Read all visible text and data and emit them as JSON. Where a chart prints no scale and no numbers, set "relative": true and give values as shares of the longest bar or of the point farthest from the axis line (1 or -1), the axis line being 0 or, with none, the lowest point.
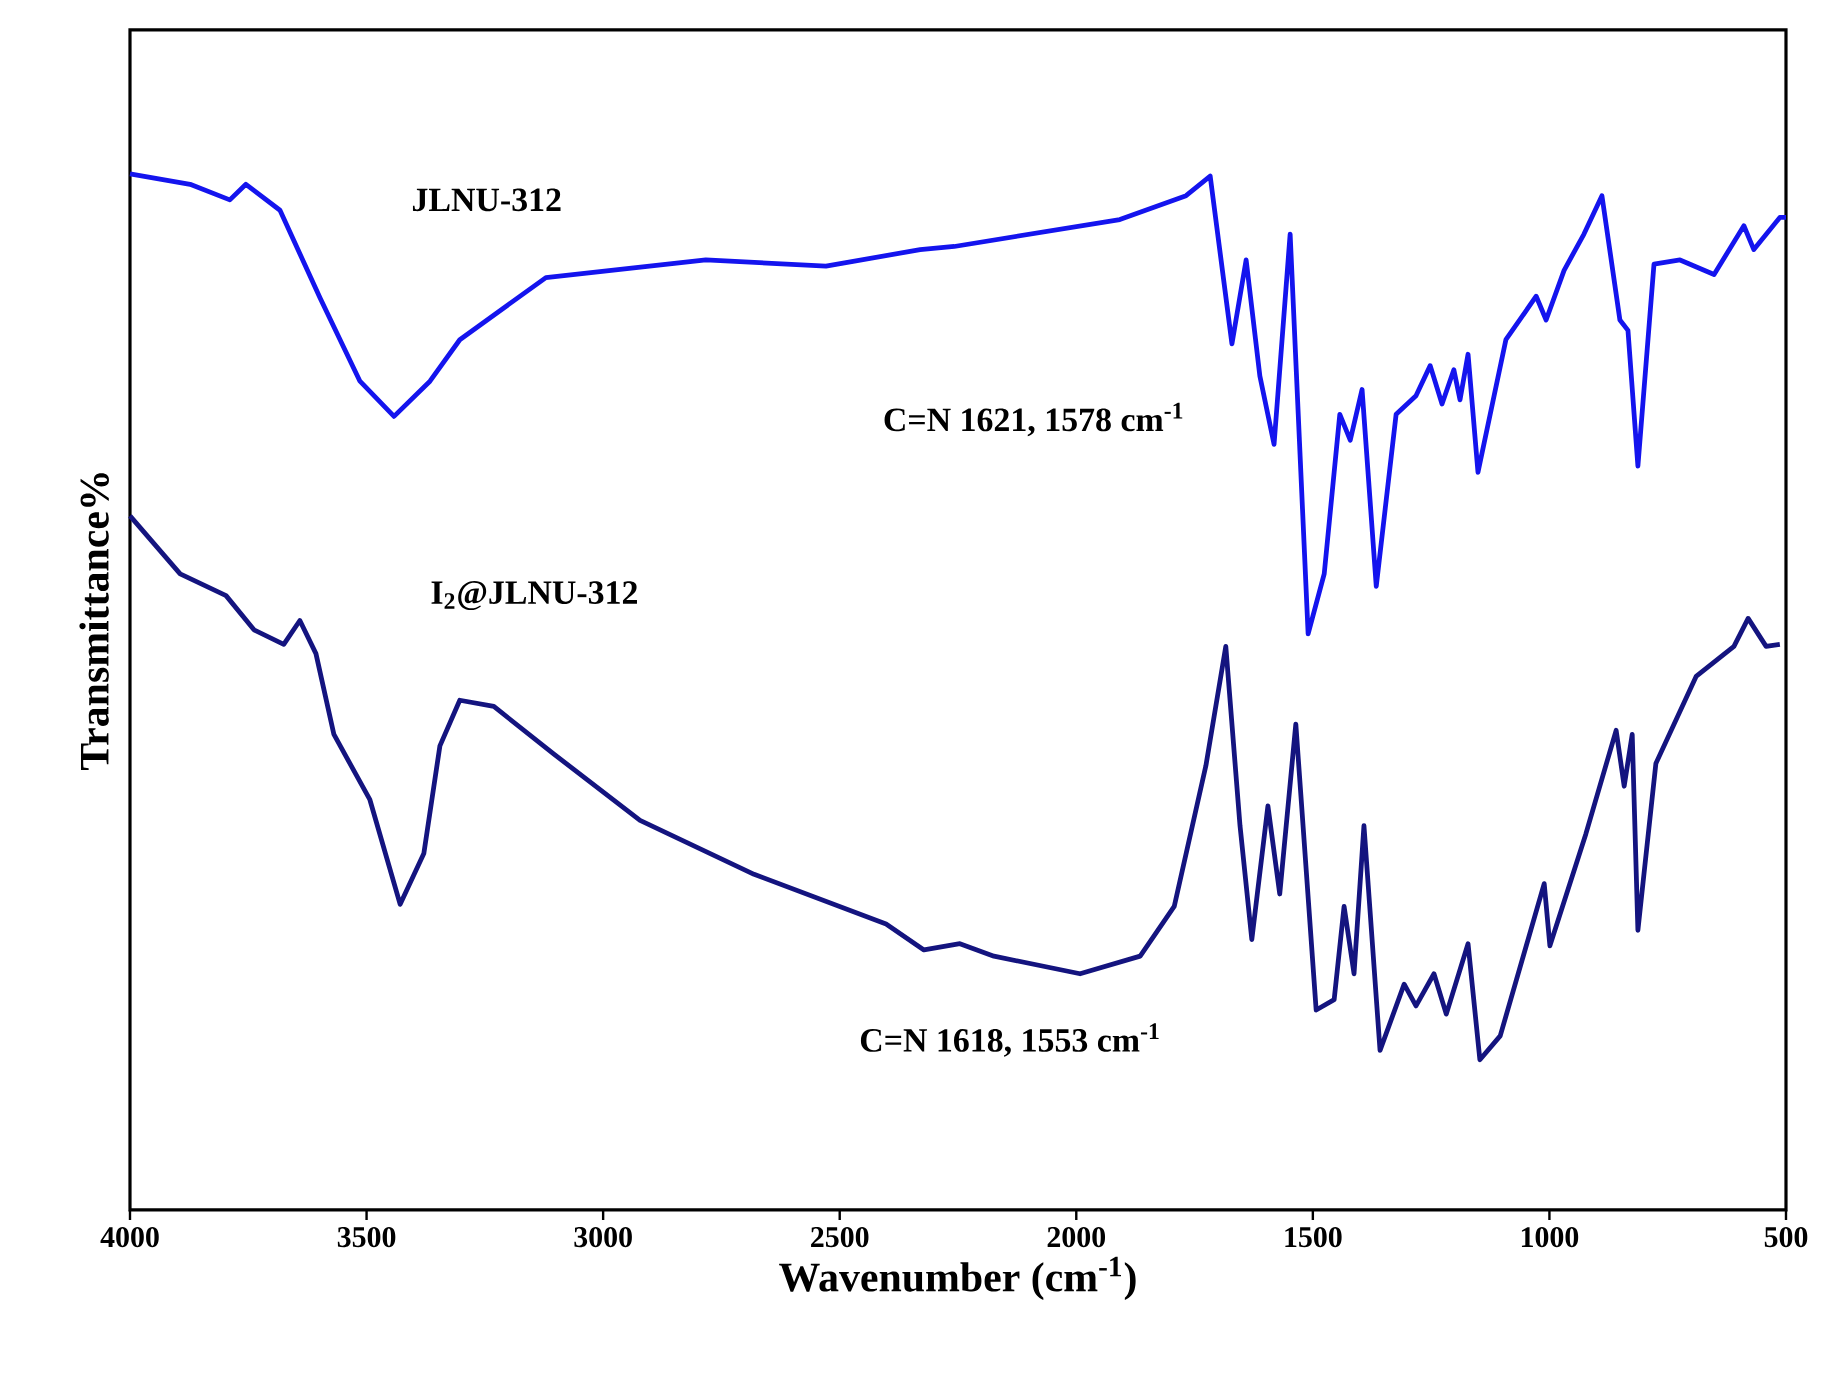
{
  "chart_data": {
    "type": "line",
    "relative": true,
    "xlabel": "Wavenumber (cm$^{-1}$)",
    "ylabel": "Transmittance%",
    "xlim": [
      4000,
      500
    ],
    "xticks": [
      4000,
      3500,
      3000,
      2500,
      2000,
      1500,
      1000,
      500
    ],
    "grid": false,
    "marker": "none",
    "line_style": "solid",
    "annotations": [
      "C=N 1621, 1578 cm$^{-1}$",
      "C=N 1618, 1553 cm$^{-1}$"
    ],
    "series": [
      {
        "name": "JLNU-312",
        "color": "#1414ee",
        "x": [
          4000,
          3873,
          3789,
          3755,
          3683,
          3598,
          3514,
          3442,
          3366,
          3303,
          3121,
          2783,
          2529,
          2330,
          2258,
          1908,
          1768,
          1717,
          1671,
          1641,
          1612,
          1582,
          1548,
          1510,
          1476,
          1443,
          1421,
          1396,
          1366,
          1324,
          1282,
          1252,
          1227,
          1202,
          1189,
          1172,
          1151,
          1092,
          1028,
          1007,
          969,
          927,
          889,
          851,
          834,
          813,
          779,
          724,
          652,
          589,
          568,
          513,
          500
        ],
        "values": [
          1.0,
          0.99,
          0.975,
          0.99,
          0.965,
          0.88,
          0.8,
          0.766,
          0.8,
          0.84,
          0.9,
          0.917,
          0.911,
          0.927,
          0.93,
          0.956,
          0.979,
          0.998,
          0.836,
          0.917,
          0.805,
          0.739,
          0.942,
          0.556,
          0.614,
          0.768,
          0.743,
          0.792,
          0.602,
          0.768,
          0.786,
          0.815,
          0.778,
          0.811,
          0.782,
          0.826,
          0.712,
          0.84,
          0.882,
          0.859,
          0.907,
          0.942,
          0.979,
          0.859,
          0.849,
          0.718,
          0.913,
          0.917,
          0.903,
          0.95,
          0.927,
          0.958,
          0.958
        ]
      },
      {
        "name": "I$_{2}$@JLNU-312",
        "color": "#14147f",
        "x": [
          4000,
          3894,
          3797,
          3738,
          3675,
          3641,
          3607,
          3569,
          3493,
          3429,
          3379,
          3345,
          3303,
          3231,
          3104,
          2922,
          2681,
          2402,
          2322,
          2246,
          2174,
          1992,
          1865,
          1793,
          1726,
          1684,
          1654,
          1629,
          1595,
          1570,
          1536,
          1493,
          1455,
          1434,
          1413,
          1392,
          1358,
          1307,
          1282,
          1244,
          1218,
          1172,
          1147,
          1104,
          1011,
          999,
          923,
          859,
          842,
          825,
          813,
          775,
          690,
          610,
          580,
          542,
          513
        ],
        "values": [
          0.67,
          0.614,
          0.593,
          0.56,
          0.546,
          0.569,
          0.537,
          0.459,
          0.396,
          0.295,
          0.344,
          0.448,
          0.492,
          0.486,
          0.44,
          0.376,
          0.324,
          0.276,
          0.251,
          0.257,
          0.245,
          0.228,
          0.245,
          0.293,
          0.429,
          0.544,
          0.371,
          0.261,
          0.39,
          0.305,
          0.469,
          0.193,
          0.203,
          0.293,
          0.228,
          0.371,
          0.154,
          0.218,
          0.197,
          0.228,
          0.189,
          0.257,
          0.145,
          0.168,
          0.315,
          0.255,
          0.363,
          0.463,
          0.409,
          0.459,
          0.27,
          0.431,
          0.515,
          0.544,
          0.571,
          0.544,
          0.546
        ]
      }
    ]
  }
}
